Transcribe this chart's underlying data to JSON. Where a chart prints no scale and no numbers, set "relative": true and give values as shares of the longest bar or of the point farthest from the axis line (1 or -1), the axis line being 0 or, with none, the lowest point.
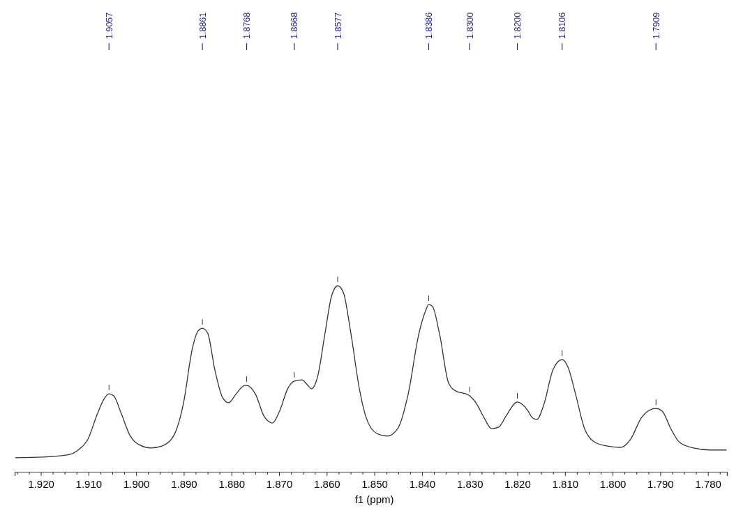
{
  "chart_data": {
    "type": "line",
    "relative": true,
    "xlabel": "f1 (ppm)",
    "xlim": [
      1.9255,
      1.776
    ],
    "xticks": [
      {
        "value": 1.925,
        "label": null
      },
      {
        "value": 1.9225,
        "label": null
      },
      {
        "value": 1.92,
        "label": "1.920"
      },
      {
        "value": 1.9175,
        "label": null
      },
      {
        "value": 1.915,
        "label": null
      },
      {
        "value": 1.9125,
        "label": null
      },
      {
        "value": 1.91,
        "label": "1.910"
      },
      {
        "value": 1.9075,
        "label": null
      },
      {
        "value": 1.905,
        "label": null
      },
      {
        "value": 1.9025,
        "label": null
      },
      {
        "value": 1.9,
        "label": "1.900"
      },
      {
        "value": 1.8975,
        "label": null
      },
      {
        "value": 1.895,
        "label": null
      },
      {
        "value": 1.8925,
        "label": null
      },
      {
        "value": 1.89,
        "label": "1.890"
      },
      {
        "value": 1.8875,
        "label": null
      },
      {
        "value": 1.885,
        "label": null
      },
      {
        "value": 1.8825,
        "label": null
      },
      {
        "value": 1.88,
        "label": "1.880"
      },
      {
        "value": 1.8775,
        "label": null
      },
      {
        "value": 1.875,
        "label": null
      },
      {
        "value": 1.8725,
        "label": null
      },
      {
        "value": 1.87,
        "label": "1.870"
      },
      {
        "value": 1.8675,
        "label": null
      },
      {
        "value": 1.865,
        "label": null
      },
      {
        "value": 1.8625,
        "label": null
      },
      {
        "value": 1.86,
        "label": "1.860"
      },
      {
        "value": 1.8575,
        "label": null
      },
      {
        "value": 1.855,
        "label": null
      },
      {
        "value": 1.8525,
        "label": null
      },
      {
        "value": 1.85,
        "label": "1.850"
      },
      {
        "value": 1.8475,
        "label": null
      },
      {
        "value": 1.845,
        "label": null
      },
      {
        "value": 1.8425,
        "label": null
      },
      {
        "value": 1.84,
        "label": "1.840"
      },
      {
        "value": 1.8375,
        "label": null
      },
      {
        "value": 1.835,
        "label": null
      },
      {
        "value": 1.8325,
        "label": null
      },
      {
        "value": 1.83,
        "label": "1.830"
      },
      {
        "value": 1.8275,
        "label": null
      },
      {
        "value": 1.825,
        "label": null
      },
      {
        "value": 1.8225,
        "label": null
      },
      {
        "value": 1.82,
        "label": "1.820"
      },
      {
        "value": 1.8175,
        "label": null
      },
      {
        "value": 1.815,
        "label": null
      },
      {
        "value": 1.8125,
        "label": null
      },
      {
        "value": 1.81,
        "label": "1.810"
      },
      {
        "value": 1.8075,
        "label": null
      },
      {
        "value": 1.805,
        "label": null
      },
      {
        "value": 1.8025,
        "label": null
      },
      {
        "value": 1.8,
        "label": "1.800"
      },
      {
        "value": 1.7975,
        "label": null
      },
      {
        "value": 1.795,
        "label": null
      },
      {
        "value": 1.7925,
        "label": null
      },
      {
        "value": 1.79,
        "label": "1.790"
      },
      {
        "value": 1.7875,
        "label": null
      },
      {
        "value": 1.785,
        "label": null
      },
      {
        "value": 1.7825,
        "label": null
      },
      {
        "value": 1.78,
        "label": "1.780"
      },
      {
        "value": 1.7775,
        "label": null
      }
    ],
    "marker": "none",
    "line_style": "solid",
    "series": [
      {
        "color": "#333333",
        "x": [
          1.9254,
          1.9196,
          1.9145,
          1.912,
          1.9101,
          1.9082,
          1.9067,
          1.9057,
          1.9047,
          1.9032,
          1.9013,
          1.8991,
          1.8969,
          1.8945,
          1.8921,
          1.8901,
          1.8882,
          1.887,
          1.8861,
          1.885,
          1.8835,
          1.8819,
          1.8806,
          1.879,
          1.8772,
          1.8768,
          1.875,
          1.8731,
          1.8714,
          1.8699,
          1.8682,
          1.8668,
          1.8652,
          1.8641,
          1.8632,
          1.8619,
          1.8604,
          1.859,
          1.8577,
          1.8565,
          1.8549,
          1.8531,
          1.8517,
          1.8495,
          1.8473,
          1.8451,
          1.8429,
          1.8407,
          1.8392,
          1.8386,
          1.8378,
          1.8363,
          1.8344,
          1.8327,
          1.8308,
          1.83,
          1.8287,
          1.8271,
          1.8254,
          1.8239,
          1.8222,
          1.82,
          1.8179,
          1.8168,
          1.8159,
          1.8144,
          1.8125,
          1.8106,
          1.8093,
          1.8078,
          1.8059,
          1.8039,
          1.8013,
          1.7984,
          1.7962,
          1.794,
          1.7921,
          1.7909,
          1.7896,
          1.7878,
          1.7859,
          1.783,
          1.7794,
          1.7761
        ],
        "values": [
          0.075,
          0.079,
          0.09,
          0.12,
          0.176,
          0.307,
          0.393,
          0.419,
          0.408,
          0.318,
          0.195,
          0.142,
          0.128,
          0.139,
          0.195,
          0.364,
          0.663,
          0.757,
          0.771,
          0.746,
          0.55,
          0.401,
          0.371,
          0.419,
          0.464,
          0.464,
          0.419,
          0.296,
          0.262,
          0.326,
          0.446,
          0.487,
          0.494,
          0.468,
          0.446,
          0.513,
          0.738,
          0.943,
          1,
          0.963,
          0.738,
          0.439,
          0.289,
          0.206,
          0.192,
          0.232,
          0.419,
          0.738,
          0.869,
          0.899,
          0.888,
          0.738,
          0.475,
          0.431,
          0.419,
          0.408,
          0.371,
          0.296,
          0.232,
          0.24,
          0.307,
          0.375,
          0.333,
          0.289,
          0.281,
          0.364,
          0.55,
          0.603,
          0.558,
          0.419,
          0.232,
          0.161,
          0.139,
          0.131,
          0.176,
          0.289,
          0.333,
          0.34,
          0.326,
          0.232,
          0.157,
          0.128,
          0.117,
          0.117
        ]
      }
    ],
    "annotations": [
      {
        "text": "1.9057",
        "x": 1.9057
      },
      {
        "text": "1.8861",
        "x": 1.8861
      },
      {
        "text": "1.8768",
        "x": 1.8768
      },
      {
        "text": "1.8668",
        "x": 1.8668
      },
      {
        "text": "1.8577",
        "x": 1.8577
      },
      {
        "text": "1.8386",
        "x": 1.8386
      },
      {
        "text": "1.8300",
        "x": 1.83
      },
      {
        "text": "1.8200",
        "x": 1.82
      },
      {
        "text": "1.8106",
        "x": 1.8106
      },
      {
        "text": "1.7909",
        "x": 1.7909
      }
    ]
  }
}
